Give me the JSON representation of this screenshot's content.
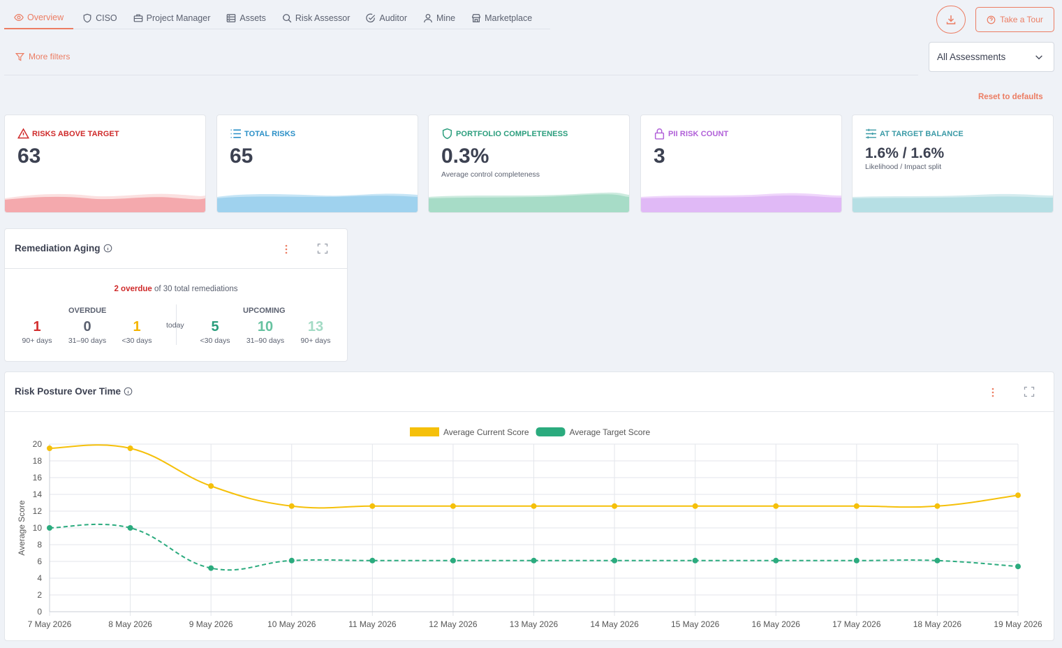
{
  "nav": {
    "tabs": [
      {
        "label": "Overview",
        "icon": "eye-icon",
        "active": true
      },
      {
        "label": "CISO",
        "icon": "shield-icon"
      },
      {
        "label": "Project Manager",
        "icon": "briefcase-icon"
      },
      {
        "label": "Assets",
        "icon": "server-icon"
      },
      {
        "label": "Risk Assessor",
        "icon": "search-icon"
      },
      {
        "label": "Auditor",
        "icon": "check-circle-icon"
      },
      {
        "label": "Mine",
        "icon": "user-icon"
      },
      {
        "label": "Marketplace",
        "icon": "store-icon"
      }
    ],
    "take_tour_label": "Take a Tour",
    "download_icon": "download-icon"
  },
  "filters": {
    "more_filters_label": "More filters",
    "assessment_select_value": "All Assessments",
    "reset_label": "Reset to defaults"
  },
  "colors": {
    "accent": "#ec7d63",
    "risk_red": "#cf2a2a",
    "total_blue": "#2a8fc7",
    "portfolio_green": "#2a9d7c",
    "pii_purple": "#b05fd8",
    "balance_teal": "#3a9aa6",
    "current_series": "#f5c00a",
    "target_series": "#2bab7e"
  },
  "kpis": {
    "risks_above_target": {
      "label": "RISKS ABOVE TARGET",
      "value": "63"
    },
    "total_risks": {
      "label": "TOTAL RISKS",
      "value": "65"
    },
    "portfolio_completeness": {
      "label": "PORTFOLIO COMPLETENESS",
      "value": "0.3%",
      "sub": "Average control completeness"
    },
    "pii_risk_count": {
      "label": "PII RISK COUNT",
      "value": "3"
    },
    "at_target_balance": {
      "label": "AT TARGET BALANCE",
      "value": "1.6% / 1.6%",
      "sub": "Likelihood / Impact split"
    }
  },
  "aging": {
    "title": "Remediation Aging",
    "overdue_highlight": "2 overdue",
    "summary_rest": " of 30 total remediations",
    "overdue_label": "OVERDUE",
    "upcoming_label": "UPCOMING",
    "today_label": "today",
    "buckets": [
      {
        "value": "1",
        "label": "90+ days",
        "color": "#d32f2f"
      },
      {
        "value": "0",
        "label": "31–90 days",
        "color": "#5b6170"
      },
      {
        "value": "1",
        "label": "<30 days",
        "color": "#f5b400"
      },
      {
        "value": "5",
        "label": "<30 days",
        "color": "#2a9d7c"
      },
      {
        "value": "10",
        "label": "31–90 days",
        "color": "#66c2a0"
      },
      {
        "value": "13",
        "label": "90+ days",
        "color": "#a3dbc5"
      }
    ]
  },
  "posture": {
    "title": "Risk Posture Over Time"
  },
  "chart_data": {
    "type": "line",
    "title": "",
    "xlabel": "",
    "ylabel": "Average Score",
    "x": [
      "7 May 2026",
      "8 May 2026",
      "9 May 2026",
      "10 May 2026",
      "11 May 2026",
      "12 May 2026",
      "13 May 2026",
      "14 May 2026",
      "15 May 2026",
      "16 May 2026",
      "17 May 2026",
      "18 May 2026",
      "19 May 2026"
    ],
    "ylim": [
      0,
      20
    ],
    "yticks": [
      0,
      2,
      4,
      6,
      8,
      10,
      12,
      14,
      16,
      18,
      20
    ],
    "grid": true,
    "legend": "top-center",
    "series": [
      {
        "name": "Average Current Score",
        "values": [
          19.5,
          19.5,
          15.0,
          12.6,
          12.6,
          12.6,
          12.6,
          12.6,
          12.6,
          12.6,
          12.6,
          12.6,
          13.9
        ],
        "color": "#f5c00a",
        "style": "solid"
      },
      {
        "name": "Average Target Score",
        "values": [
          10.0,
          10.0,
          5.2,
          6.1,
          6.1,
          6.1,
          6.1,
          6.1,
          6.1,
          6.1,
          6.1,
          6.1,
          5.4
        ],
        "color": "#2bab7e",
        "style": "dashed"
      }
    ]
  }
}
